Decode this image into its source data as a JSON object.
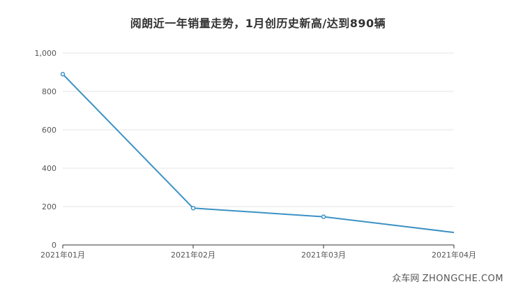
{
  "chart_data": {
    "type": "line",
    "title": "阅朗近一年销量走势，1月创历史新高/达到890辆",
    "categories": [
      "2021年01月",
      "2021年02月",
      "2021年03月",
      "2021年04月"
    ],
    "series": [
      {
        "values": [
          890,
          192,
          147,
          65
        ],
        "color": "#3c92c4"
      }
    ],
    "xlabel": "",
    "ylabel": "",
    "ylim": [
      0,
      1000
    ],
    "yticks": [
      0,
      200,
      400,
      600,
      800,
      1000
    ],
    "ytick_labels": [
      "0",
      "200",
      "400",
      "600",
      "800",
      "1,000"
    ],
    "grid": true,
    "legend": "none"
  },
  "watermark": {
    "cn": "众车网",
    "en": "ZHONGCHE.COM"
  },
  "colors": {
    "line": "#3c92c4",
    "grid": "#e6e6e6",
    "axis": "#333333",
    "tick_text": "#555555"
  }
}
